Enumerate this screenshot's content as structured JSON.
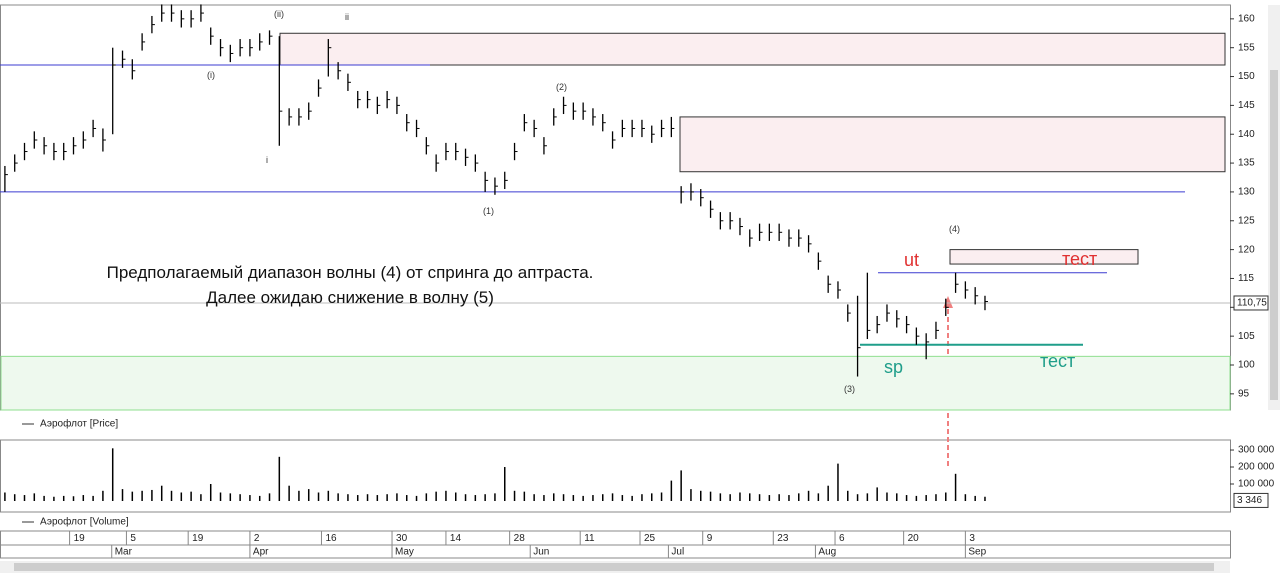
{
  "chart_data": {
    "type": "ohlc",
    "series": [
      {
        "name": "Аэрофлот [Price]",
        "color": "#000000",
        "high": [
          134.5,
          136.5,
          138.5,
          140.5,
          139.5,
          138.5,
          138.5,
          139.5,
          140.5,
          142.5,
          141,
          155,
          154.5,
          153,
          157.5,
          160.5,
          162.5,
          162.5,
          161.5,
          161.5,
          162.5,
          158.5,
          156.5,
          155.5,
          156.5,
          156.5,
          157.5,
          158,
          157,
          144.5,
          144.5,
          145.5,
          149.5,
          156.5,
          152.5,
          150.5,
          147.5,
          147.5,
          146.5,
          147.5,
          146.5,
          143.5,
          142.5,
          139.5,
          136.5,
          138.5,
          138.5,
          137.5,
          136.5,
          133.5,
          132.5,
          133.5,
          138.5,
          143.5,
          142.5,
          139.5,
          144.5,
          146.5,
          145.5,
          145.5,
          144.5,
          143.5,
          140.5,
          142.5,
          142.5,
          142.5,
          141.5,
          142.5,
          143,
          131,
          131.5,
          130.5,
          128.5,
          126.5,
          126.5,
          125.5,
          123.5,
          124.5,
          124.5,
          124.5,
          123.5,
          123.5,
          122.5,
          119.5,
          115.5,
          114.5,
          110.5,
          112,
          116,
          108.5,
          110.5,
          109.5,
          108.5,
          106.5,
          105.5,
          107.5,
          111.5,
          116,
          114.5,
          113.5,
          112
        ],
        "low": [
          130,
          133.5,
          135.5,
          137.5,
          136.5,
          135.5,
          135.5,
          136.5,
          137.5,
          139.5,
          137,
          140,
          151.5,
          149.5,
          154.5,
          157.5,
          159.5,
          159.5,
          158.5,
          158.5,
          159.5,
          155.5,
          153.5,
          152.5,
          153.5,
          153.5,
          154.5,
          155.5,
          138,
          141.5,
          141.5,
          142.5,
          146.5,
          150,
          149.5,
          147.5,
          144.5,
          144.5,
          143.5,
          144.5,
          143.5,
          140.5,
          139.5,
          136.5,
          133.5,
          135.5,
          135.5,
          134.5,
          133.5,
          130,
          129.5,
          130.5,
          135.5,
          140.5,
          139.5,
          136.5,
          141.5,
          143.5,
          142.5,
          142.5,
          141.5,
          140.5,
          137.5,
          139.5,
          139.5,
          139.5,
          138.5,
          139.5,
          139.5,
          128,
          128.5,
          127.5,
          125.5,
          123.5,
          123.5,
          122.5,
          120.5,
          121.5,
          121.5,
          121.5,
          120.5,
          120.5,
          119.5,
          116.5,
          112.5,
          111.5,
          107.5,
          98,
          104.5,
          105.5,
          107.5,
          106.5,
          105.5,
          103.5,
          101,
          104.5,
          108.5,
          112.5,
          111.5,
          110.5,
          109.5
        ],
        "close": [
          133,
          135,
          137,
          139,
          138,
          137,
          137,
          138,
          139,
          141,
          139,
          152,
          153,
          151,
          156,
          159,
          161,
          161,
          160,
          160,
          161,
          157,
          155,
          154,
          155,
          155,
          156,
          157,
          144,
          143,
          143,
          144,
          148,
          155,
          151,
          149,
          146,
          146,
          145,
          146,
          145,
          142,
          141,
          138,
          135,
          137,
          137,
          136,
          135,
          132,
          131,
          132,
          137,
          142,
          141,
          138,
          143,
          145,
          144,
          144,
          143,
          142,
          139,
          141,
          141,
          141,
          140,
          141,
          141,
          130,
          130,
          129,
          127,
          125,
          125,
          124,
          122,
          123,
          123,
          123,
          122,
          122,
          121,
          118,
          114,
          113,
          109,
          103,
          106,
          107,
          109,
          108,
          107,
          105,
          104,
          106,
          110,
          114,
          113,
          112,
          111
        ]
      }
    ],
    "ylim": [
      92.2,
      162.4
    ],
    "yticks": [
      95,
      100,
      105,
      110,
      115,
      120,
      125,
      130,
      135,
      140,
      145,
      150,
      155,
      160
    ],
    "last_price": {
      "value": 110.75,
      "label": "110,75"
    },
    "xlim": [
      -0.5,
      125
    ],
    "xticks": [
      {
        "value": 6.6,
        "label": "19"
      },
      {
        "value": 12.4,
        "label": "5"
      },
      {
        "value": 18.7,
        "label": "19"
      },
      {
        "value": 25,
        "label": "2"
      },
      {
        "value": 32.3,
        "label": "16"
      },
      {
        "value": 39.5,
        "label": "30"
      },
      {
        "value": 45,
        "label": "14"
      },
      {
        "value": 51.5,
        "label": "28"
      },
      {
        "value": 58.7,
        "label": "11"
      },
      {
        "value": 64.8,
        "label": "25"
      },
      {
        "value": 71.2,
        "label": "9"
      },
      {
        "value": 78.4,
        "label": "23"
      },
      {
        "value": 84.7,
        "label": "6"
      },
      {
        "value": 91.7,
        "label": "20"
      },
      {
        "value": 98,
        "label": "3"
      }
    ],
    "month_ticks": [
      {
        "value": 10.9,
        "label": "Mar"
      },
      {
        "value": 25,
        "label": "Apr"
      },
      {
        "value": 39.5,
        "label": "May"
      },
      {
        "value": 53.6,
        "label": "Jun"
      },
      {
        "value": 67.7,
        "label": "Jul"
      },
      {
        "value": 82.7,
        "label": "Aug"
      },
      {
        "value": 98,
        "label": "Sep"
      }
    ],
    "zones": [
      {
        "low": 152,
        "high": 157.5,
        "color": "#fbeef0"
      },
      {
        "low": 133.5,
        "high": 143,
        "color": "#fbeef0"
      },
      {
        "low": 117.5,
        "high": 120,
        "color": "#fbeef0"
      },
      {
        "low": 92.2,
        "high": 101.5,
        "color": "#eef9ee"
      }
    ],
    "levels": [
      {
        "value": 152,
        "color": "#3b3bd0"
      },
      {
        "value": 130,
        "color": "#3b3bd0"
      },
      {
        "value": 116,
        "color": "#3b3bd0"
      },
      {
        "value": 103.5,
        "color": "#1f9e8a"
      }
    ],
    "volume": {
      "type": "bar",
      "name": "Аэрофлот [Volume]",
      "color": "#000000",
      "values": [
        50000,
        40000,
        35000,
        45000,
        30000,
        25000,
        30000,
        28000,
        35000,
        30000,
        60000,
        310000,
        70000,
        55000,
        60000,
        65000,
        90000,
        60000,
        50000,
        55000,
        40000,
        100000,
        50000,
        45000,
        40000,
        35000,
        30000,
        45000,
        260000,
        90000,
        60000,
        70000,
        50000,
        60000,
        45000,
        40000,
        35000,
        40000,
        35000,
        40000,
        45000,
        35000,
        30000,
        45000,
        55000,
        60000,
        50000,
        40000,
        35000,
        40000,
        45000,
        200000,
        60000,
        55000,
        40000,
        35000,
        45000,
        40000,
        35000,
        30000,
        35000,
        40000,
        45000,
        35000,
        30000,
        40000,
        45000,
        50000,
        120000,
        180000,
        70000,
        60000,
        55000,
        45000,
        40000,
        50000,
        45000,
        40000,
        35000,
        40000,
        35000,
        45000,
        60000,
        45000,
        90000,
        220000,
        60000,
        40000,
        45000,
        80000,
        50000,
        45000,
        35000,
        30000,
        35000,
        40000,
        50000,
        160000,
        40000,
        30000,
        25000
      ],
      "ylim": [
        -53000,
        359000
      ],
      "yticks": [
        {
          "value": 100000,
          "label": "100 000"
        },
        {
          "value": 200000,
          "label": "200 000"
        },
        {
          "value": 300000,
          "label": "300 000"
        }
      ],
      "last": {
        "value": 3346,
        "label": "3 346"
      }
    },
    "annotations": [
      "(i)",
      "(ii)",
      "ii",
      "i",
      "(2)",
      "(1)",
      "(3)",
      "(4)",
      "ut",
      "тест",
      "sp",
      "тест"
    ],
    "note": "Предполагаемый диапазон волны (4) от спринга до аптраста. Далее ожидаю снижение в волну (5)"
  }
}
